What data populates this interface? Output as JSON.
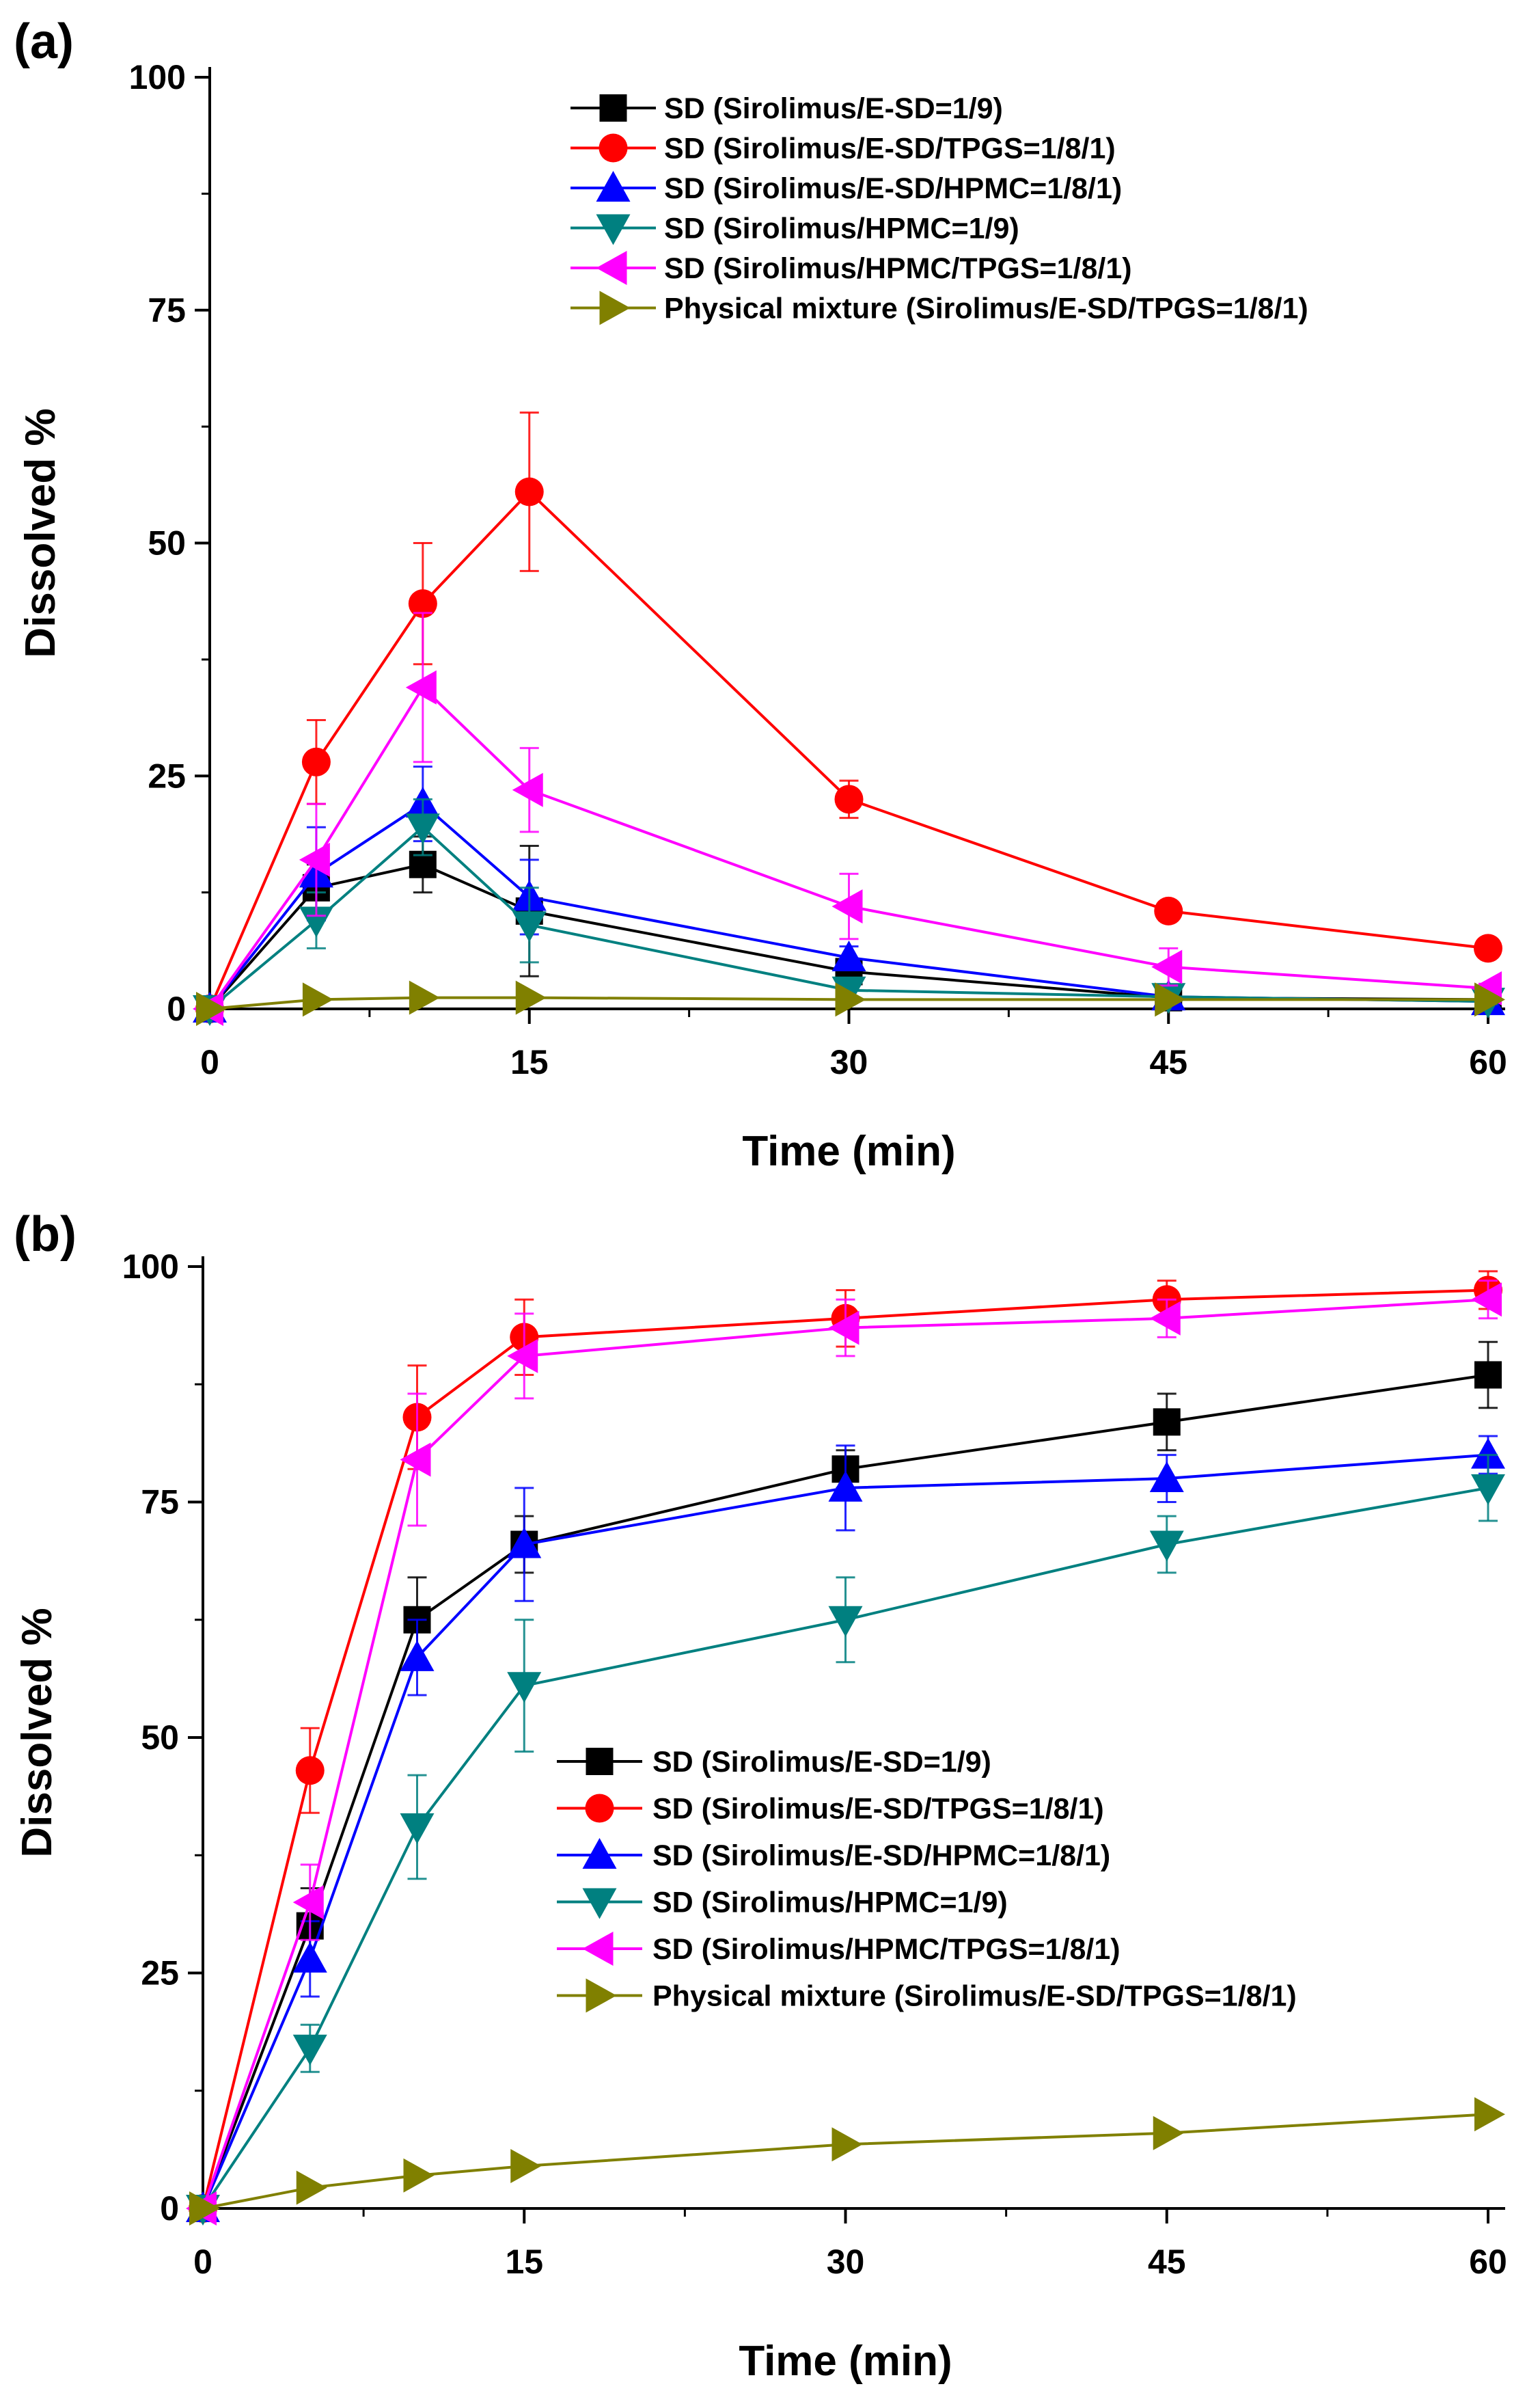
{
  "chart_data": [
    {
      "type": "line",
      "panel_label": "(a)",
      "xlabel": "Time (min)",
      "ylabel": "Dissolved %",
      "xlim": [
        0,
        60
      ],
      "ylim": [
        0,
        100
      ],
      "xticks": [
        "0",
        "15",
        "30",
        "45",
        "60"
      ],
      "yticks": [
        "0",
        "25",
        "50",
        "75",
        "100"
      ],
      "legend_position": "top-right",
      "x": [
        0,
        5,
        10,
        15,
        30,
        45,
        60
      ],
      "series": [
        {
          "name": "SD (Sirolimus/E-SD=1/9)",
          "color": "#000000",
          "marker": "square",
          "values": [
            0,
            13,
            15.5,
            10.5,
            4,
            1.2,
            1
          ],
          "errors": [
            0,
            2.5,
            3,
            7,
            1,
            0.5,
            0.3
          ]
        },
        {
          "name": "SD (Sirolimus/E-SD/TPGS=1/8/1)",
          "color": "#ff0000",
          "marker": "circle",
          "values": [
            0,
            26.5,
            43.5,
            55.5,
            22.5,
            10.5,
            6.5
          ],
          "errors": [
            0,
            4.5,
            6.5,
            8.5,
            2,
            0.8,
            0.5
          ]
        },
        {
          "name": "SD (Sirolimus/E-SD/HPMC=1/8/1)",
          "color": "#0000ff",
          "marker": "triangle-up",
          "values": [
            0,
            14.5,
            22,
            12,
            5.5,
            1.3,
            0.8
          ],
          "errors": [
            0,
            5,
            4,
            4,
            1.2,
            0.5,
            0.3
          ]
        },
        {
          "name": "SD (Sirolimus/HPMC=1/9)",
          "color": "#008080",
          "marker": "triangle-down",
          "values": [
            0,
            9.5,
            19.5,
            9,
            2,
            1.3,
            0.8
          ],
          "errors": [
            0,
            3,
            3,
            4,
            1,
            0.5,
            0.3
          ]
        },
        {
          "name": "SD (Sirolimus/HPMC/TPGS=1/8/1)",
          "color": "#ff00ff",
          "marker": "triangle-left",
          "values": [
            0,
            16,
            34.5,
            23.5,
            11,
            4.5,
            2.2
          ],
          "errors": [
            0,
            6,
            8,
            4.5,
            3.5,
            2,
            0.5
          ]
        },
        {
          "name": "Physical mixture (Sirolimus/E-SD/TPGS=1/8/1)",
          "color": "#808000",
          "marker": "triangle-right",
          "values": [
            0,
            1,
            1.2,
            1.2,
            1,
            1,
            1
          ],
          "errors": [
            0,
            0.2,
            0.2,
            0.2,
            0.2,
            0.2,
            0.2
          ]
        }
      ]
    },
    {
      "type": "line",
      "panel_label": "(b)",
      "xlabel": "Time (min)",
      "ylabel": "Dissolved %",
      "xlim": [
        0,
        60
      ],
      "ylim": [
        0,
        100
      ],
      "xticks": [
        "0",
        "15",
        "30",
        "45",
        "60"
      ],
      "yticks": [
        "0",
        "25",
        "50",
        "75",
        "100"
      ],
      "legend_position": "center-right",
      "x": [
        0,
        5,
        10,
        15,
        30,
        45,
        60
      ],
      "series": [
        {
          "name": "SD (Sirolimus/E-SD=1/9)",
          "color": "#000000",
          "marker": "square",
          "values": [
            0,
            30,
            62.5,
            70.5,
            78.5,
            83.5,
            88.5
          ],
          "errors": [
            0,
            4,
            4.5,
            3,
            2,
            3,
            3.5
          ]
        },
        {
          "name": "SD (Sirolimus/E-SD/TPGS=1/8/1)",
          "color": "#ff0000",
          "marker": "circle",
          "values": [
            0,
            46.5,
            84,
            92.5,
            94.5,
            96.5,
            97.5
          ],
          "errors": [
            0,
            4.5,
            5.5,
            4,
            3,
            2,
            2
          ]
        },
        {
          "name": "SD (Sirolimus/E-SD/HPMC=1/8/1)",
          "color": "#0000ff",
          "marker": "triangle-up",
          "values": [
            0,
            26.5,
            58.5,
            70.5,
            76.5,
            77.5,
            80
          ],
          "errors": [
            0,
            4,
            4,
            6,
            4.5,
            2.5,
            2
          ]
        },
        {
          "name": "SD (Sirolimus/HPMC=1/9)",
          "color": "#008080",
          "marker": "triangle-down",
          "values": [
            0,
            17,
            40.5,
            55.5,
            62.5,
            70.5,
            76.5
          ],
          "errors": [
            0,
            2.5,
            5.5,
            7,
            4.5,
            3,
            3.5
          ]
        },
        {
          "name": "SD (Sirolimus/HPMC/TPGS=1/8/1)",
          "color": "#ff00ff",
          "marker": "triangle-left",
          "values": [
            0,
            32.5,
            79.5,
            90.5,
            93.5,
            94.5,
            96.5
          ],
          "errors": [
            0,
            4,
            7,
            4.5,
            3,
            2,
            2
          ]
        },
        {
          "name": "Physical mixture (Sirolimus/E-SD/TPGS=1/8/1)",
          "color": "#808000",
          "marker": "triangle-right",
          "values": [
            0,
            2.2,
            3.5,
            4.5,
            6.8,
            8,
            10
          ],
          "errors": [
            0,
            0.3,
            0.3,
            0.3,
            0.3,
            0.3,
            0.3
          ]
        }
      ]
    }
  ]
}
